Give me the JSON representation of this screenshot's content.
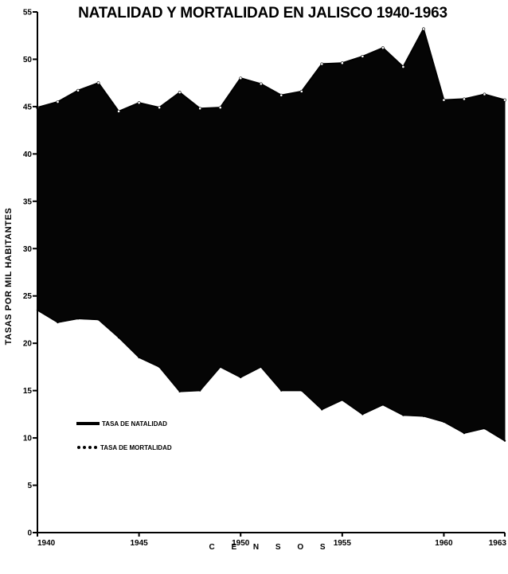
{
  "chart_data": {
    "type": "area",
    "title": "NATALIDAD Y MORTALIDAD EN JALISCO 1940-1963",
    "xlabel": "C E N S O S",
    "ylabel": "TASAS POR MIL HABITANTES",
    "xlim": [
      1940,
      1963
    ],
    "ylim": [
      0,
      55
    ],
    "x_ticks": [
      "1940",
      "1945",
      "1950",
      "1955",
      "1960",
      "1963"
    ],
    "y_ticks": [
      "0",
      "5",
      "10",
      "15",
      "20",
      "25",
      "30",
      "35",
      "40",
      "45",
      "50",
      "55"
    ],
    "x": [
      1940,
      1941,
      1942,
      1943,
      1944,
      1945,
      1946,
      1947,
      1948,
      1949,
      1950,
      1951,
      1952,
      1953,
      1954,
      1955,
      1956,
      1957,
      1958,
      1959,
      1960,
      1961,
      1962,
      1963
    ],
    "series": [
      {
        "name": "TASA DE NATALIDAD",
        "values": [
          44.9,
          45.5,
          46.7,
          47.5,
          44.5,
          45.4,
          44.9,
          46.5,
          44.8,
          44.9,
          48.0,
          47.4,
          46.2,
          46.6,
          49.5,
          49.6,
          50.3,
          51.2,
          49.2,
          53.2,
          45.7,
          45.8,
          46.3,
          45.7
        ]
      },
      {
        "name": "TASA DE MORTALIDAD",
        "values": [
          23.5,
          22.2,
          22.6,
          22.5,
          20.6,
          18.5,
          17.5,
          14.9,
          15.0,
          17.5,
          16.4,
          17.5,
          15.0,
          15.0,
          13.0,
          14.0,
          12.5,
          13.5,
          12.4,
          12.3,
          11.7,
          10.5,
          11.0,
          9.7
        ]
      }
    ],
    "legend": "lower-left",
    "grid": false,
    "colors": {
      "fill": "#050505",
      "background": "#ffffff",
      "ink": "#000000"
    }
  }
}
